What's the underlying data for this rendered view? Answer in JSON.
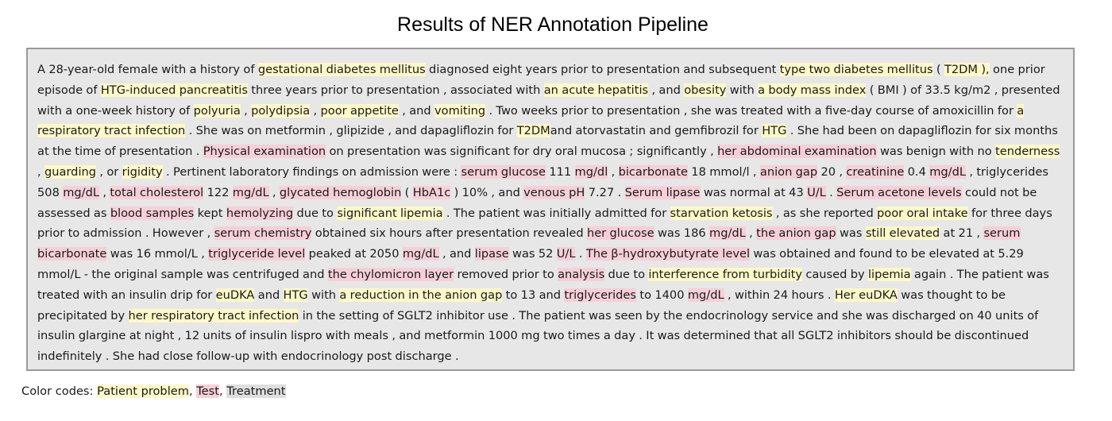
{
  "title": "Results of NER Annotation Pipeline",
  "colors": {
    "problem": "#fdf8c8",
    "test": "#f6cfd8",
    "treatment": "#dedede",
    "box_background": "#e7e7e7",
    "box_border": "#9a9a9a"
  },
  "document": {
    "segments": [
      {
        "t": "A 28-year-old female with a history of ",
        "type": "plain"
      },
      {
        "t": "gestational diabetes mellitus",
        "type": "problem"
      },
      {
        "t": " diagnosed eight years prior to presentation and subsequent ",
        "type": "plain"
      },
      {
        "t": "type two diabetes mellitus",
        "type": "problem"
      },
      {
        "t": " ( ",
        "type": "plain"
      },
      {
        "t": "T2DM ),",
        "type": "problem"
      },
      {
        "t": " one prior episode of ",
        "type": "plain"
      },
      {
        "t": "HTG-induced pancreatitis",
        "type": "problem"
      },
      {
        "t": " three years prior to presentation , associated with ",
        "type": "plain"
      },
      {
        "t": "an acute hepatitis",
        "type": "problem"
      },
      {
        "t": " , and ",
        "type": "plain"
      },
      {
        "t": "obesity",
        "type": "problem"
      },
      {
        "t": " with ",
        "type": "plain"
      },
      {
        "t": "a body mass index",
        "type": "problem"
      },
      {
        "t": " ( BMI ) of 33.5 kg/m2 , presented with a one-week history of ",
        "type": "plain"
      },
      {
        "t": "polyuria",
        "type": "problem"
      },
      {
        "t": " , ",
        "type": "plain"
      },
      {
        "t": "polydipsia",
        "type": "problem"
      },
      {
        "t": " , ",
        "type": "plain"
      },
      {
        "t": "poor appetite",
        "type": "problem"
      },
      {
        "t": " , and ",
        "type": "plain"
      },
      {
        "t": "vomiting",
        "type": "problem"
      },
      {
        "t": " . Two weeks prior to presentation , she was treated with a five-day course of amoxicillin for ",
        "type": "plain"
      },
      {
        "t": "a respiratory tract infection",
        "type": "problem"
      },
      {
        "t": " . She was on metformin , glipizide , and dapagliflozin for ",
        "type": "plain"
      },
      {
        "t": "T2DM",
        "type": "problem"
      },
      {
        "t": "and atorvastatin and gemfibrozil for ",
        "type": "plain"
      },
      {
        "t": "HTG",
        "type": "problem"
      },
      {
        "t": " . She had been on dapagliflozin for six months at the time of presentation . ",
        "type": "plain"
      },
      {
        "t": "Physical examination",
        "type": "test"
      },
      {
        "t": " on presentation was significant for dry oral mucosa ; significantly , ",
        "type": "plain"
      },
      {
        "t": "her abdominal examination",
        "type": "test"
      },
      {
        "t": " was benign with no ",
        "type": "plain"
      },
      {
        "t": "tenderness",
        "type": "problem"
      },
      {
        "t": " , ",
        "type": "plain"
      },
      {
        "t": "guarding",
        "type": "problem"
      },
      {
        "t": " , or ",
        "type": "plain"
      },
      {
        "t": "rigidity",
        "type": "problem"
      },
      {
        "t": " . Pertinent laboratory findings on admission were : ",
        "type": "plain"
      },
      {
        "t": "serum glucose",
        "type": "test"
      },
      {
        "t": " 111 ",
        "type": "plain"
      },
      {
        "t": "mg/dl",
        "type": "test"
      },
      {
        "t": " , ",
        "type": "plain"
      },
      {
        "t": "bicarbonate",
        "type": "test"
      },
      {
        "t": " 18 mmol/l , ",
        "type": "plain"
      },
      {
        "t": "anion gap",
        "type": "test"
      },
      {
        "t": " 20 , ",
        "type": "plain"
      },
      {
        "t": "creatinine",
        "type": "test"
      },
      {
        "t": " 0.4 ",
        "type": "plain"
      },
      {
        "t": "mg/dL",
        "type": "test"
      },
      {
        "t": " , triglycerides 508 ",
        "type": "plain"
      },
      {
        "t": "mg/dL",
        "type": "test"
      },
      {
        "t": " , ",
        "type": "plain"
      },
      {
        "t": "total cholesterol",
        "type": "test"
      },
      {
        "t": " 122 ",
        "type": "plain"
      },
      {
        "t": "mg/dL",
        "type": "test"
      },
      {
        "t": " , ",
        "type": "plain"
      },
      {
        "t": "glycated hemoglobin",
        "type": "test"
      },
      {
        "t": " ( ",
        "type": "plain"
      },
      {
        "t": "HbA1c",
        "type": "test"
      },
      {
        "t": " ) 10% , and ",
        "type": "plain"
      },
      {
        "t": "venous pH",
        "type": "test"
      },
      {
        "t": " 7.27 . ",
        "type": "plain"
      },
      {
        "t": "Serum lipase",
        "type": "test"
      },
      {
        "t": " was normal at 43 ",
        "type": "plain"
      },
      {
        "t": "U/L",
        "type": "test"
      },
      {
        "t": " . ",
        "type": "plain"
      },
      {
        "t": "Serum acetone levels",
        "type": "test"
      },
      {
        "t": " could not be assessed as ",
        "type": "plain"
      },
      {
        "t": "blood samples",
        "type": "test"
      },
      {
        "t": " kept ",
        "type": "plain"
      },
      {
        "t": "hemolyzing",
        "type": "test"
      },
      {
        "t": " due to ",
        "type": "plain"
      },
      {
        "t": "significant lipemia",
        "type": "problem"
      },
      {
        "t": " . The patient was initially admitted for ",
        "type": "plain"
      },
      {
        "t": "starvation ketosis",
        "type": "problem"
      },
      {
        "t": " , as she reported ",
        "type": "plain"
      },
      {
        "t": "poor oral intake",
        "type": "problem"
      },
      {
        "t": " for three days prior to admission . However , ",
        "type": "plain"
      },
      {
        "t": "serum chemistry",
        "type": "test"
      },
      {
        "t": " obtained six hours after presentation revealed ",
        "type": "plain"
      },
      {
        "t": "her glucose",
        "type": "test"
      },
      {
        "t": " was 186 ",
        "type": "plain"
      },
      {
        "t": "mg/dL",
        "type": "test"
      },
      {
        "t": " , ",
        "type": "plain"
      },
      {
        "t": "the anion gap",
        "type": "test"
      },
      {
        "t": " was ",
        "type": "plain"
      },
      {
        "t": "still elevated",
        "type": "problem"
      },
      {
        "t": " at 21 , ",
        "type": "plain"
      },
      {
        "t": "serum bicarbonate",
        "type": "test"
      },
      {
        "t": " was 16 mmol/L , ",
        "type": "plain"
      },
      {
        "t": "triglyceride level",
        "type": "test"
      },
      {
        "t": " peaked at 2050 ",
        "type": "plain"
      },
      {
        "t": "mg/dL",
        "type": "test"
      },
      {
        "t": " , and ",
        "type": "plain"
      },
      {
        "t": "lipase",
        "type": "test"
      },
      {
        "t": " was 52 ",
        "type": "plain"
      },
      {
        "t": "U/L",
        "type": "test"
      },
      {
        "t": " . ",
        "type": "plain"
      },
      {
        "t": "The β-hydroxybutyrate level",
        "type": "test"
      },
      {
        "t": " was obtained and found to be elevated at 5.29 mmol/L - the original sample was centrifuged and ",
        "type": "plain"
      },
      {
        "t": "the chylomicron layer",
        "type": "test"
      },
      {
        "t": " removed prior to ",
        "type": "plain"
      },
      {
        "t": "analysis",
        "type": "test"
      },
      {
        "t": " due to ",
        "type": "plain"
      },
      {
        "t": "interference from turbidity",
        "type": "problem"
      },
      {
        "t": " caused by ",
        "type": "plain"
      },
      {
        "t": "lipemia",
        "type": "problem"
      },
      {
        "t": " again . The patient was treated with an insulin drip for ",
        "type": "plain"
      },
      {
        "t": "euDKA",
        "type": "problem"
      },
      {
        "t": " and ",
        "type": "plain"
      },
      {
        "t": "HTG",
        "type": "problem"
      },
      {
        "t": " with ",
        "type": "plain"
      },
      {
        "t": "a reduction in the anion gap",
        "type": "problem"
      },
      {
        "t": " to 13 and ",
        "type": "plain"
      },
      {
        "t": "triglycerides",
        "type": "test"
      },
      {
        "t": " to 1400 ",
        "type": "plain"
      },
      {
        "t": "mg/dL",
        "type": "test"
      },
      {
        "t": " , within 24 hours . ",
        "type": "plain"
      },
      {
        "t": "Her euDKA",
        "type": "problem"
      },
      {
        "t": " was thought to be precipitated by ",
        "type": "plain"
      },
      {
        "t": "her respiratory tract infection",
        "type": "problem"
      },
      {
        "t": " in the setting of SGLT2 inhibitor use . The patient was seen by the endocrinology service and she was discharged on 40 units of insulin glargine at night , 12 units of insulin lispro with meals , and metformin 1000 mg two times a day . It was determined that all SGLT2 inhibitors should be discontinued indefinitely . She had close follow-up with endocrinology post discharge .",
        "type": "plain"
      }
    ]
  },
  "legend": {
    "prefix": "Color codes: ",
    "separator": ", ",
    "problem_label": "Patient problem",
    "test_label": "Test",
    "treatment_label": "Treatment"
  }
}
